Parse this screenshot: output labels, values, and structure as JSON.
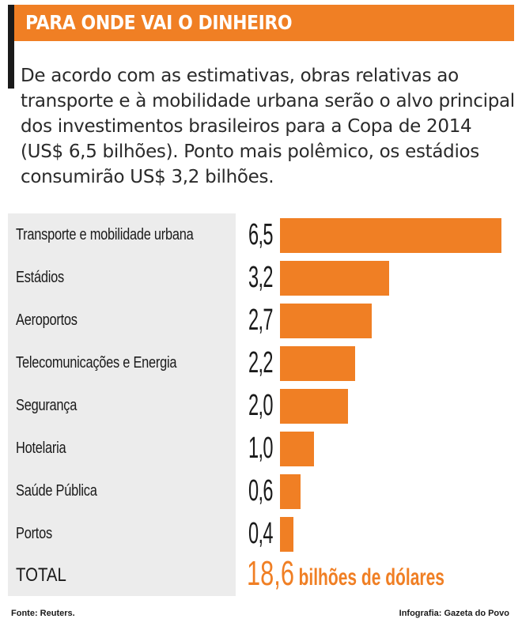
{
  "header": {
    "title": "PARA ONDE VAI O DINHEIRO"
  },
  "intro": {
    "text": "De acordo com as estimativas, obras relativas ao transporte e à mobilidade urbana serão o alvo principal dos investimentos brasileiros para a Copa de 2014 (US$ 6,5 bilhões). Ponto mais polêmico, os estádios consumirão US$ 3,2 bilhões."
  },
  "chart_data": {
    "type": "bar",
    "orientation": "horizontal",
    "categories": [
      "Transporte e mobilidade urbana",
      "Estádios",
      "Aeroportos",
      "Telecomunicações e Energia",
      "Segurança",
      "Hotelaria",
      "Saúde Pública",
      "Portos"
    ],
    "values": [
      6.5,
      3.2,
      2.7,
      2.2,
      2.0,
      1.0,
      0.6,
      0.4
    ],
    "value_labels": [
      "6,5",
      "3,2",
      "2,7",
      "2,2",
      "2,0",
      "1,0",
      "0,6",
      "0,4"
    ],
    "xlim": [
      0,
      6.5
    ],
    "bar_color": "#f07f24",
    "grid": false,
    "title": "",
    "xlabel": "",
    "ylabel": ""
  },
  "total": {
    "label": "TOTAL",
    "value": "18,6",
    "unit": "bilhões de dólares"
  },
  "footer": {
    "source": "Fonte: Reuters.",
    "credit": "Infografia: Gazeta do Povo"
  },
  "colors": {
    "accent": "#f07f24",
    "row_background": "#ececec",
    "text": "#1a1a1a"
  }
}
